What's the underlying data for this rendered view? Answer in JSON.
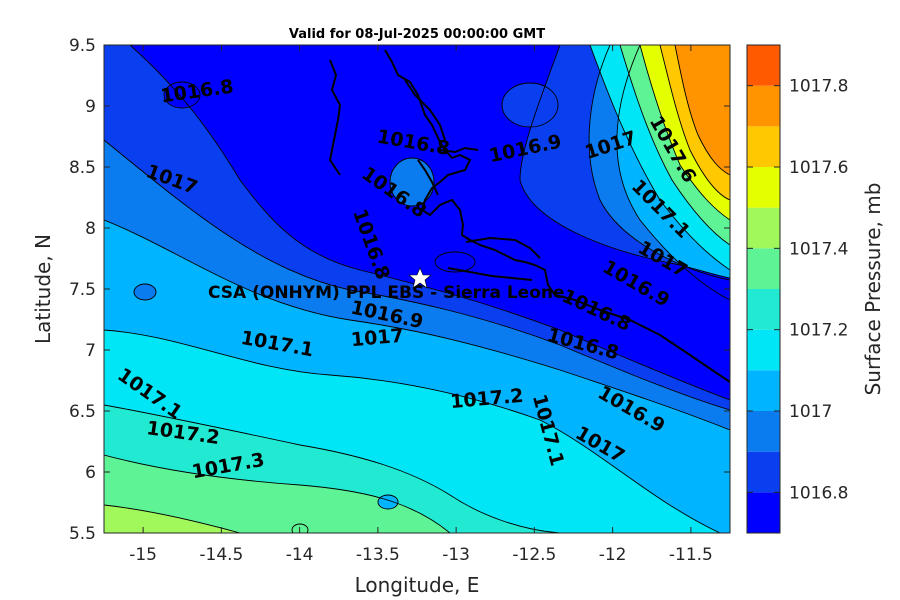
{
  "chart_data": {
    "type": "contour-map",
    "title": "Valid for 08-Jul-2025 00:00:00 GMT",
    "xlabel": "Longitude, E",
    "ylabel": "Latitude, N",
    "xlim": [
      -15.25,
      -11.25
    ],
    "ylim": [
      5.5,
      9.5
    ],
    "xticks": [
      "-15",
      "-14.5",
      "-14",
      "-13.5",
      "-13",
      "-12.5",
      "-12",
      "-11.5"
    ],
    "yticks": [
      "9.5",
      "9",
      "8.5",
      "8",
      "7.5",
      "7",
      "6.5",
      "6",
      "5.5"
    ],
    "colorbar": {
      "label": "Surface Pressure, mb",
      "ticks": [
        "1017.8",
        "1017.6",
        "1017.4",
        "1017.2",
        "1017",
        "1016.8"
      ],
      "levels": [
        1016.7,
        1016.8,
        1016.9,
        1017.0,
        1017.1,
        1017.2,
        1017.3,
        1017.4,
        1017.5,
        1017.6,
        1017.7,
        1017.8,
        1017.9
      ],
      "colors": [
        "#0000ff",
        "#0a3ff0",
        "#0a7cf0",
        "#00b4ff",
        "#00e6f6",
        "#22ead2",
        "#5ef394",
        "#a1f85a",
        "#e3ff00",
        "#ffc800",
        "#ff9300",
        "#ff5a00",
        "#ff0000"
      ]
    },
    "contour_labels": [
      {
        "text": "1016.8",
        "lon": -14.65,
        "lat": 9.07
      },
      {
        "text": "1017",
        "lon": -14.83,
        "lat": 8.35
      },
      {
        "text": "1016.8",
        "lon": -13.42,
        "lat": 8.25
      },
      {
        "text": "1016.8",
        "lon": -13.28,
        "lat": 8.65
      },
      {
        "text": "1016.8",
        "lon": -13.58,
        "lat": 7.85
      },
      {
        "text": "1016.9",
        "lon": -12.55,
        "lat": 8.6
      },
      {
        "text": "1017",
        "lon": -12.0,
        "lat": 8.63
      },
      {
        "text": "1016.9",
        "lon": -13.45,
        "lat": 7.24
      },
      {
        "text": "1017",
        "lon": -13.5,
        "lat": 7.05
      },
      {
        "text": "1017.1",
        "lon": -14.15,
        "lat": 7.0
      },
      {
        "text": "1017.1",
        "lon": -14.98,
        "lat": 6.6
      },
      {
        "text": "1017.2",
        "lon": -14.75,
        "lat": 6.27
      },
      {
        "text": "1017.3",
        "lon": -14.45,
        "lat": 6.0
      },
      {
        "text": "1017.2",
        "lon": -12.8,
        "lat": 6.55
      },
      {
        "text": "1017.1",
        "lon": -12.45,
        "lat": 6.33
      },
      {
        "text": "1016.8",
        "lon": -12.2,
        "lat": 7.0
      },
      {
        "text": "1016.9",
        "lon": -11.9,
        "lat": 6.47
      },
      {
        "text": "1017",
        "lon": -12.1,
        "lat": 6.18
      },
      {
        "text": "1016.8",
        "lon": -12.12,
        "lat": 7.28
      },
      {
        "text": "1016.9",
        "lon": -11.87,
        "lat": 7.5
      },
      {
        "text": "1017",
        "lon": -11.7,
        "lat": 7.7
      },
      {
        "text": "1017.1",
        "lon": -11.72,
        "lat": 8.12
      },
      {
        "text": "1017.6",
        "lon": -11.65,
        "lat": 8.62
      }
    ],
    "site": {
      "name": "CSA (ONHYM) PPL EBS  - Sierra Leone",
      "lon": -13.22,
      "lat": 7.6,
      "marker": "star"
    },
    "grid": false
  }
}
